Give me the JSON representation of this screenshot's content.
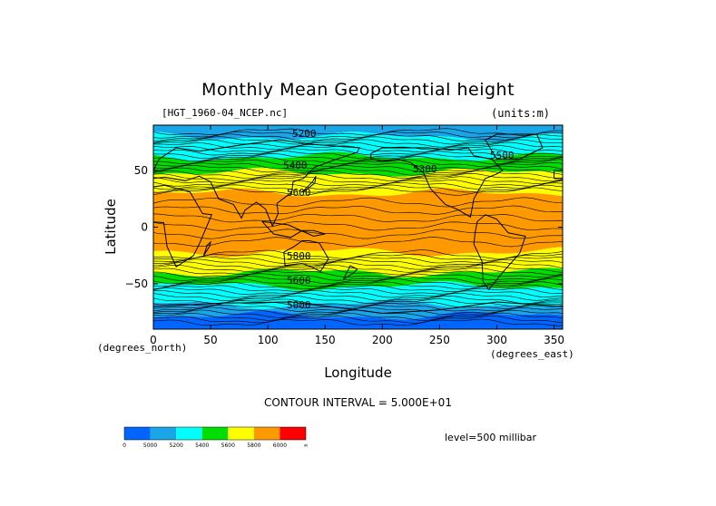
{
  "chart_data": {
    "type": "heatmap",
    "title": "Monthly Mean Geopotential height",
    "source_label": "[HGT_1960-04_NCEP.nc]",
    "units_label": "(units:m)",
    "xlabel": "Longitude",
    "ylabel": "Latitude",
    "x_units": "(degrees_east)",
    "y_units": "(degrees_north)",
    "xlim": [
      0,
      357.5
    ],
    "ylim": [
      -90,
      90
    ],
    "x_ticks": [
      0,
      50,
      100,
      150,
      200,
      250,
      300,
      350
    ],
    "y_ticks": [
      50,
      0,
      -50
    ],
    "contour_interval_text": "CONTOUR INTERVAL = 5.000E+01",
    "level_text": "level=500 millibar",
    "contour_labels": [
      "5200",
      "5400",
      "5300",
      "5500",
      "5600",
      "5800",
      "5600",
      "5000"
    ],
    "colorbar": {
      "labels": [
        "0",
        "5000",
        "5200",
        "5400",
        "5600",
        "5800",
        "6000",
        "∞"
      ],
      "colors": [
        "#0066ff",
        "#1aa5e8",
        "#00ffff",
        "#00dd00",
        "#ffff00",
        "#ff9900",
        "#ff0000"
      ]
    },
    "latitude_bands": [
      {
        "lat_from": 90,
        "lat_to": 80,
        "color_index": 1
      },
      {
        "lat_from": 80,
        "lat_to": 62,
        "color_index": 2
      },
      {
        "lat_from": 62,
        "lat_to": 48,
        "color_index": 3
      },
      {
        "lat_from": 48,
        "lat_to": 30,
        "color_index": 4
      },
      {
        "lat_from": 30,
        "lat_to": -22,
        "color_index": 5
      },
      {
        "lat_from": -22,
        "lat_to": -40,
        "color_index": 4
      },
      {
        "lat_from": -40,
        "lat_to": -52,
        "color_index": 3
      },
      {
        "lat_from": -52,
        "lat_to": -68,
        "color_index": 2
      },
      {
        "lat_from": -68,
        "lat_to": -78,
        "color_index": 1
      },
      {
        "lat_from": -78,
        "lat_to": -90,
        "color_index": 0
      }
    ]
  }
}
